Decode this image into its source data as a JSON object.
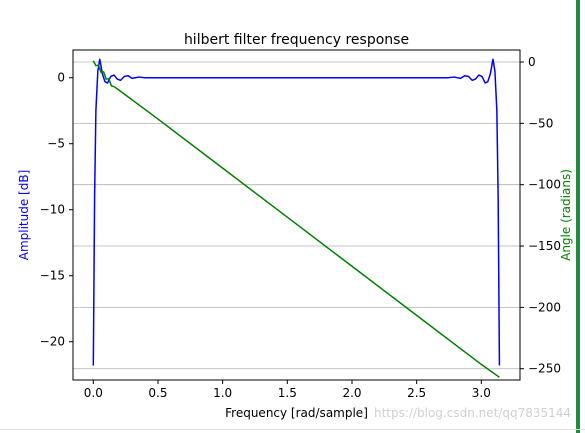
{
  "chart_data": {
    "type": "line",
    "title": "hilbert filter frequency response",
    "xlabel": "Frequency [rad/sample]",
    "ylabel_left": "Amplitude [dB]",
    "ylabel_right": "Angle (radians)",
    "xlim": [
      -0.157,
      3.299
    ],
    "ylim_left": [
      -22.9,
      2.1
    ],
    "ylim_right": [
      -259.2,
      9.8
    ],
    "x_ticks": [
      0.0,
      0.5,
      1.0,
      1.5,
      2.0,
      2.5,
      3.0
    ],
    "x_tick_labels": [
      "0.0",
      "0.5",
      "1.0",
      "1.5",
      "2.0",
      "2.5",
      "3.0"
    ],
    "y_ticks_left": [
      0,
      -5,
      -10,
      -15,
      -20
    ],
    "y_tick_labels_left": [
      "0",
      "−5",
      "−10",
      "−15",
      "−20"
    ],
    "y_ticks_right": [
      0,
      -50,
      -100,
      -150,
      -200,
      -250
    ],
    "y_tick_labels_right": [
      "0",
      "−50",
      "−100",
      "−150",
      "−200",
      "−250"
    ],
    "grid": "right-axis horizontal",
    "colors": {
      "amplitude": "#0000ff",
      "angle": "#008000",
      "grid": "#b0b0b0",
      "axes": "#000000"
    },
    "series": [
      {
        "axis": "left",
        "color": "#0000ff",
        "x": [
          0.0,
          0.01,
          0.02,
          0.035,
          0.05,
          0.07,
          0.09,
          0.11,
          0.135,
          0.16,
          0.185,
          0.21,
          0.24,
          0.27,
          0.3,
          0.35,
          0.4,
          0.5,
          0.6,
          0.8,
          1.0,
          1.2,
          1.4,
          1.57,
          1.74,
          1.94,
          2.14,
          2.34,
          2.54,
          2.64,
          2.74,
          2.79,
          2.84,
          2.87,
          2.9,
          2.93,
          2.955,
          2.98,
          3.005,
          3.03,
          3.05,
          3.07,
          3.09,
          3.105,
          3.12,
          3.13,
          3.14
        ],
        "y": [
          -21.8,
          -9.0,
          -2.5,
          0.5,
          1.4,
          0.3,
          -0.3,
          -0.4,
          0.1,
          0.2,
          -0.1,
          -0.2,
          0.1,
          0.15,
          -0.05,
          0.05,
          0.0,
          0.0,
          0.0,
          0.0,
          0.0,
          0.0,
          0.0,
          0.0,
          0.0,
          0.0,
          0.0,
          0.0,
          0.0,
          0.0,
          0.0,
          0.05,
          -0.05,
          0.15,
          0.1,
          -0.2,
          -0.1,
          0.2,
          0.1,
          -0.4,
          -0.3,
          0.3,
          1.4,
          0.5,
          -2.5,
          -9.0,
          -21.8
        ]
      },
      {
        "axis": "right",
        "color": "#008000",
        "x": [
          0.0,
          0.02,
          0.04,
          0.06,
          0.08,
          0.1,
          0.12,
          0.14,
          0.16,
          0.2,
          0.5,
          1.0,
          1.5,
          2.0,
          2.5,
          3.0,
          3.14
        ],
        "y": [
          1.0,
          -3.0,
          -2.5,
          -8.5,
          -8.0,
          -14.0,
          -13.5,
          -19.5,
          -20.0,
          -23.0,
          -46.5,
          -86.5,
          -126.5,
          -166.5,
          -206.5,
          -246.5,
          -257.0
        ]
      }
    ]
  },
  "watermark": "https://blog.csdn.net/qq7835144"
}
